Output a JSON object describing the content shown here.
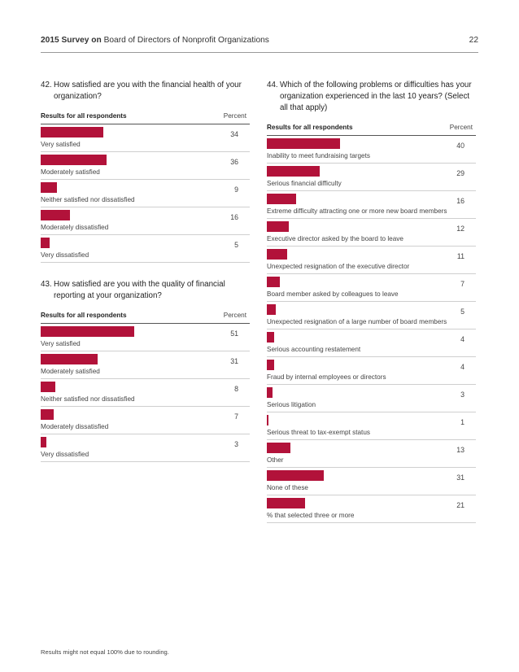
{
  "header": {
    "brand": "2015 Survey on",
    "title": "Board of Directors of Nonprofit Organizations",
    "page_number": "22"
  },
  "footer": "Results might not equal 100% due to rounding.",
  "colors": {
    "bar": "#b2123a"
  },
  "chart_data": [
    {
      "type": "bar",
      "number": "42.",
      "title": "How satisfied are you with the financial health of your organization?",
      "subtitle": "Results for all respondents",
      "value_label": "Percent",
      "categories": [
        "Very satisfied",
        "Moderately satisfied",
        "Neither satisfied nor dissatisfied",
        "Moderately dissatisfied",
        "Very dissatisfied"
      ],
      "values": [
        34,
        36,
        9,
        16,
        5
      ]
    },
    {
      "type": "bar",
      "number": "43.",
      "title": "How satisfied are you with the quality of financial reporting at your organization?",
      "subtitle": "Results for all respondents",
      "value_label": "Percent",
      "categories": [
        "Very satisfied",
        "Moderately satisfied",
        "Neither satisfied nor dissatisfied",
        "Moderately dissatisfied",
        "Very dissatisfied"
      ],
      "values": [
        51,
        31,
        8,
        7,
        3
      ]
    },
    {
      "type": "bar",
      "number": "44.",
      "title": "Which of the following problems or difficulties has your organization experienced in the last 10 years? (Select all that apply)",
      "subtitle": "Results for all respondents",
      "value_label": "Percent",
      "categories": [
        "Inability to meet fundraising targets",
        "Serious financial difficulty",
        "Extreme difficulty attracting one or more new board members",
        "Executive director asked by the board to leave",
        "Unexpected resignation of the executive director",
        "Board member asked by colleagues to leave",
        "Unexpected resignation of a large number of board members",
        "Serious accounting restatement",
        "Fraud by internal employees or directors",
        "Serious litigation",
        "Serious threat to tax-exempt status",
        "Other",
        "None of these",
        "% that selected three or more"
      ],
      "values": [
        40,
        29,
        16,
        12,
        11,
        7,
        5,
        4,
        4,
        3,
        1,
        13,
        31,
        21
      ]
    }
  ]
}
